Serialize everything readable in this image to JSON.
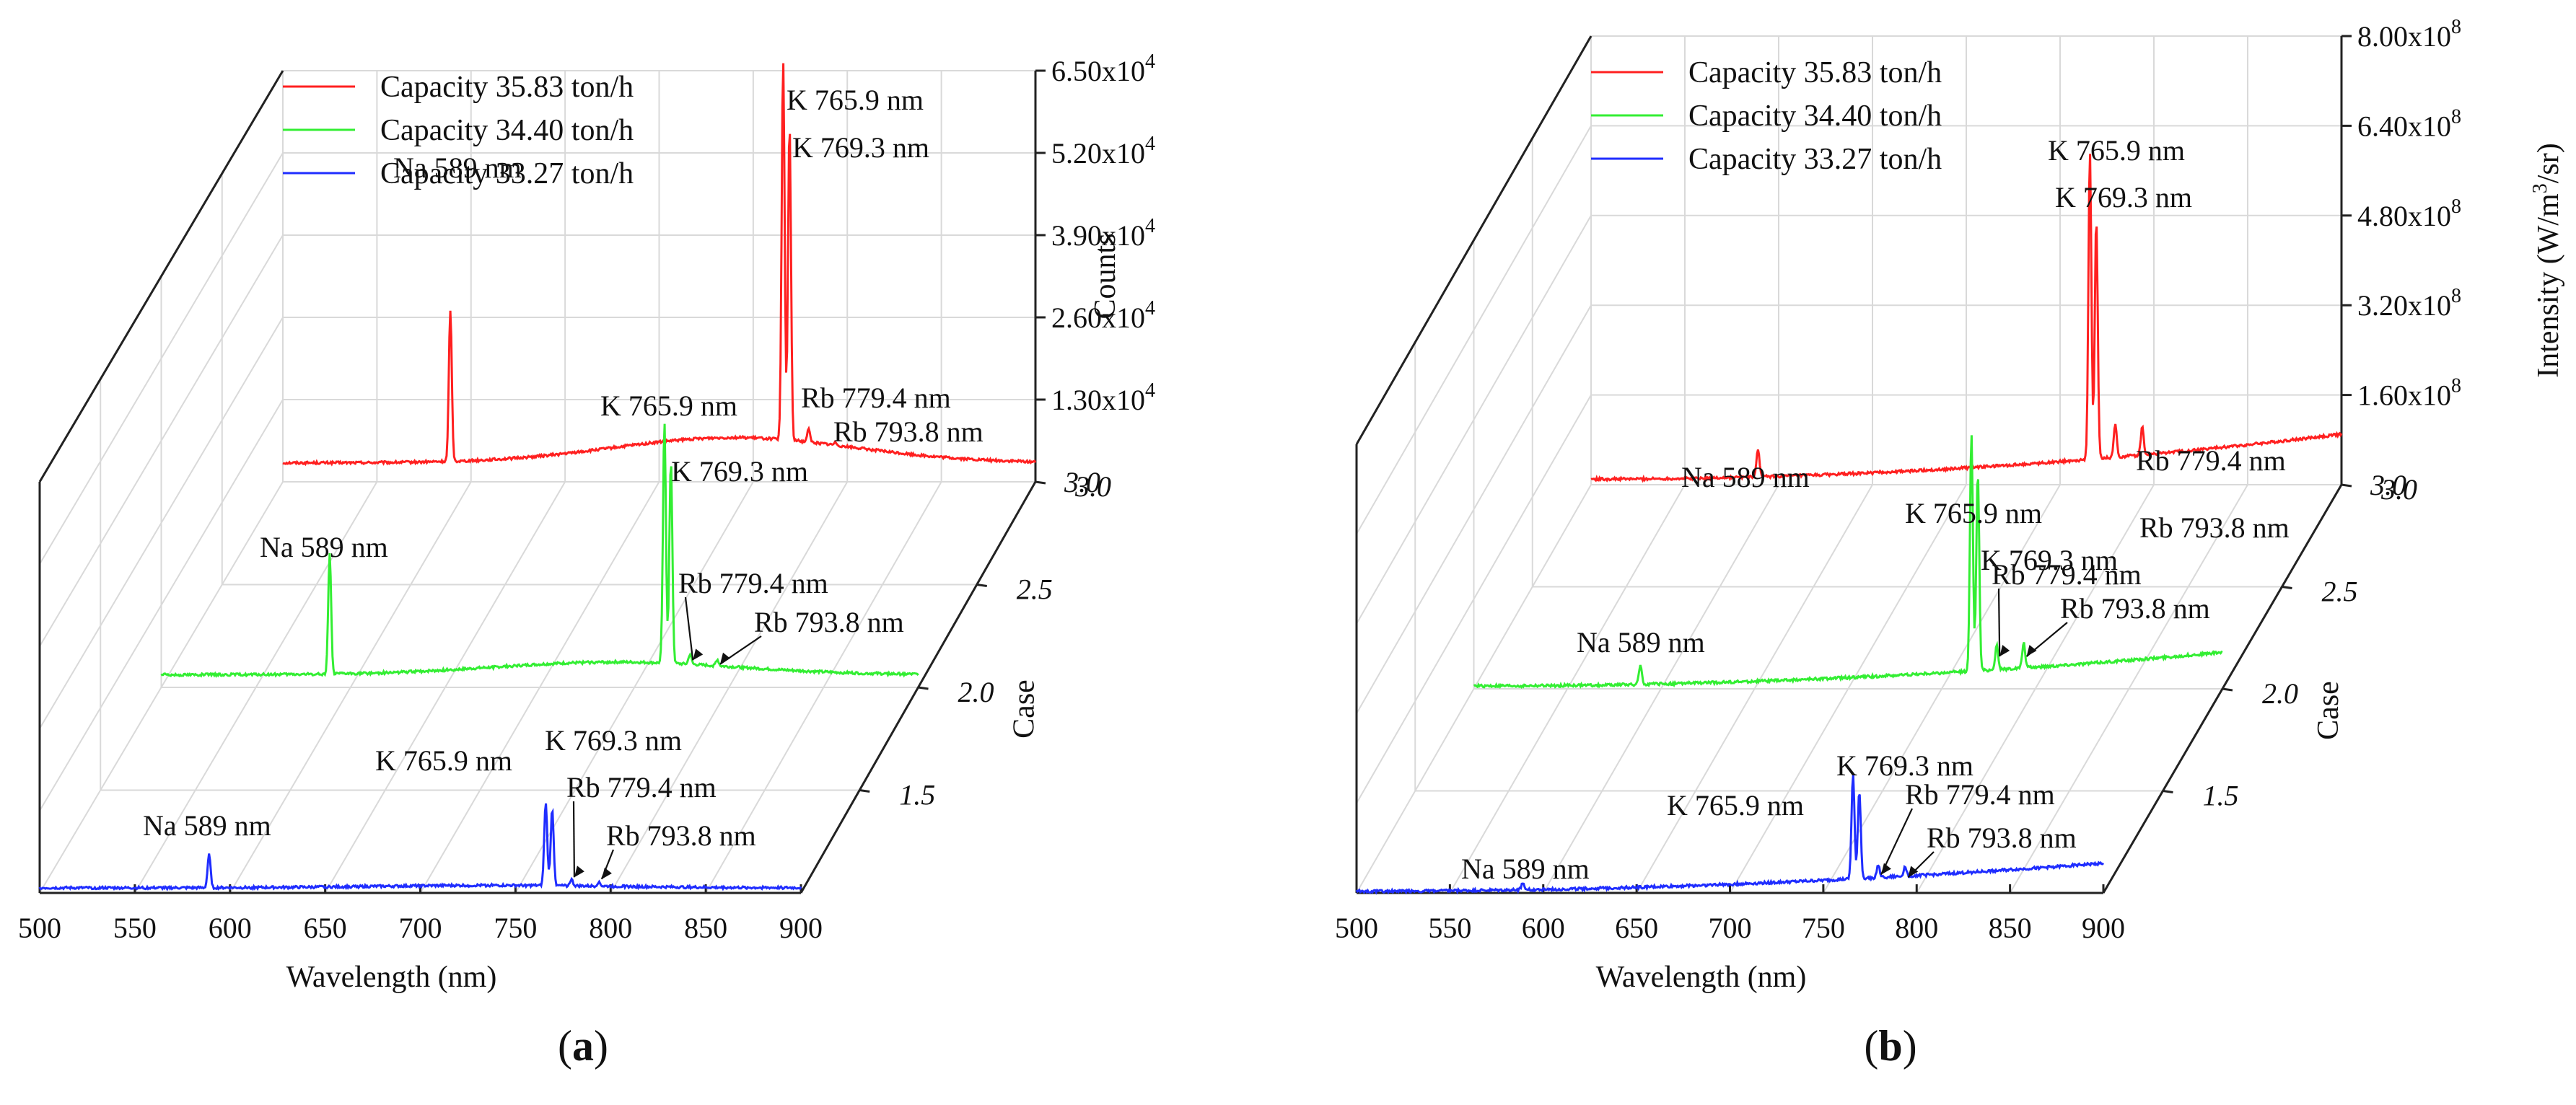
{
  "chart_data": [
    {
      "type": "line",
      "panel_label": "(a)",
      "ylabel": "Counts",
      "xlabel": "Wavelength (nm)",
      "zlabel": "Case",
      "xlim": [
        500,
        900
      ],
      "ylim": [
        0,
        65000
      ],
      "zlim": [
        1.0,
        3.0
      ],
      "x_ticks": [
        "500",
        "550",
        "600",
        "650",
        "700",
        "750",
        "800",
        "850",
        "900"
      ],
      "z_ticks": [
        "1.5",
        "2.0",
        "2.5",
        "3.0"
      ],
      "y_ticks": [
        {
          "value": 13000,
          "mantissa": "1.30x10",
          "exp": "4"
        },
        {
          "value": 26000,
          "mantissa": "2.60x10",
          "exp": "4"
        },
        {
          "value": 39000,
          "mantissa": "3.90x10",
          "exp": "4"
        },
        {
          "value": 52000,
          "mantissa": "5.20x10",
          "exp": "4"
        },
        {
          "value": 65000,
          "mantissa": "6.50x10",
          "exp": "4"
        }
      ],
      "series": [
        {
          "name": "Capacity 35.83 ton/h",
          "color": "#ff2020",
          "case": 3,
          "baseline": 3000,
          "bump": 4000,
          "peaks": [
            {
              "x": 589,
              "value": 27000
            },
            {
              "x": 765.9,
              "value": 63000
            },
            {
              "x": 769.3,
              "value": 53000
            },
            {
              "x": 779.4,
              "value": 5000
            },
            {
              "x": 793.8,
              "value": 3400
            }
          ],
          "labels": [
            "Na 589 nm",
            "K 765.9 nm",
            "K 769.3 nm",
            "Rb 779.4 nm",
            "Rb 793.8 nm"
          ]
        },
        {
          "name": "Capacity 34.40 ton/h",
          "color": "#33ee33",
          "case": 2,
          "baseline": 2000,
          "bump": 2000,
          "peaks": [
            {
              "x": 589,
              "value": 21000
            },
            {
              "x": 765.9,
              "value": 40000
            },
            {
              "x": 769.3,
              "value": 34000
            },
            {
              "x": 779.4,
              "value": 3600
            },
            {
              "x": 793.8,
              "value": 3000
            }
          ],
          "labels": [
            "Na 589 nm",
            "K 765.9 nm",
            "K 769.3 nm",
            "Rb 779.4 nm",
            "Rb 793.8 nm"
          ]
        },
        {
          "name": "Capacity 33.27 ton/h",
          "color": "#1f2dff",
          "case": 1,
          "baseline": 800,
          "bump": 400,
          "peaks": [
            {
              "x": 589,
              "value": 6000
            },
            {
              "x": 765.9,
              "value": 14000
            },
            {
              "x": 769.3,
              "value": 13000
            },
            {
              "x": 779.4,
              "value": 1800
            },
            {
              "x": 793.8,
              "value": 1500
            }
          ],
          "labels": [
            "Na 589 nm",
            "K 765.9 nm",
            "K 769.3 nm",
            "Rb 779.4 nm",
            "Rb 793.8 nm"
          ]
        }
      ]
    },
    {
      "type": "line",
      "panel_label": "(b)",
      "ylabel": "Intensity (W/m3/sr)",
      "ylabel_parts": [
        "Intensity (W/m",
        "3",
        "/sr)"
      ],
      "xlabel": "Wavelength (nm)",
      "zlabel": "Case",
      "xlim": [
        500,
        900
      ],
      "ylim": [
        0,
        800000000
      ],
      "zlim": [
        1.0,
        3.0
      ],
      "x_ticks": [
        "500",
        "550",
        "600",
        "650",
        "700",
        "750",
        "800",
        "850",
        "900"
      ],
      "z_ticks": [
        "1.5",
        "2.0",
        "2.5",
        "3.0"
      ],
      "y_ticks": [
        {
          "value": 160000000,
          "mantissa": "1.60x10",
          "exp": "8"
        },
        {
          "value": 320000000,
          "mantissa": "3.20x10",
          "exp": "8"
        },
        {
          "value": 480000000,
          "mantissa": "4.80x10",
          "exp": "8"
        },
        {
          "value": 640000000,
          "mantissa": "6.40x10",
          "exp": "8"
        },
        {
          "value": 800000000,
          "mantissa": "8.00x10",
          "exp": "8"
        }
      ],
      "series": [
        {
          "name": "Capacity 35.83 ton/h",
          "color": "#ff2020",
          "case": 3,
          "baseline": 10000000,
          "slope": 80000000,
          "peaks": [
            {
              "x": 589,
              "value": 60000000
            },
            {
              "x": 765.9,
              "value": 560000000
            },
            {
              "x": 769.3,
              "value": 440000000
            },
            {
              "x": 779.4,
              "value": 70000000
            },
            {
              "x": 793.8,
              "value": 60000000
            }
          ],
          "labels": [
            "Na 589 nm",
            "K 765.9 nm",
            "K 769.3 nm",
            "Rb 779.4 nm",
            "Rb 793.8 nm"
          ]
        },
        {
          "name": "Capacity 34.40 ton/h",
          "color": "#33ee33",
          "case": 2,
          "baseline": 5000000,
          "slope": 60000000,
          "peaks": [
            {
              "x": 589,
              "value": 40000000
            },
            {
              "x": 765.9,
              "value": 430000000
            },
            {
              "x": 769.3,
              "value": 360000000
            },
            {
              "x": 779.4,
              "value": 50000000
            },
            {
              "x": 793.8,
              "value": 50000000
            }
          ],
          "labels": [
            "Na 589 nm",
            "K 765.9 nm",
            "K 769.3 nm",
            "Rb 779.4 nm",
            "Rb 793.8 nm"
          ]
        },
        {
          "name": "Capacity 33.27 ton/h",
          "color": "#1f2dff",
          "case": 1,
          "baseline": 3000000,
          "slope": 50000000,
          "peaks": [
            {
              "x": 589,
              "value": 15000000
            },
            {
              "x": 765.9,
              "value": 190000000
            },
            {
              "x": 769.3,
              "value": 160000000
            },
            {
              "x": 779.4,
              "value": 25000000
            },
            {
              "x": 793.8,
              "value": 20000000
            }
          ],
          "labels": [
            "Na 589 nm",
            "K 765.9 nm",
            "K 769.3 nm",
            "Rb 779.4 nm",
            "Rb 793.8 nm"
          ]
        }
      ]
    }
  ]
}
